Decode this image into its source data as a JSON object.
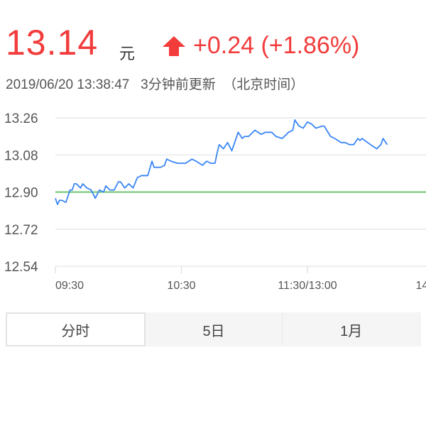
{
  "quote": {
    "price": "13.14",
    "unit": "元",
    "change": "+0.24 (+1.86%)",
    "direction_icon": "arrow-up-icon",
    "updated": "2019/06/20 13:38:47   3分钟前更新  （北京时间）",
    "up_color": "#f23b3b"
  },
  "tabs": [
    {
      "label": "分时",
      "active": true
    },
    {
      "label": "5日",
      "active": false
    },
    {
      "label": "1月",
      "active": false
    }
  ],
  "chart_data": {
    "type": "line",
    "title": "",
    "xlabel": "",
    "ylabel": "",
    "ylim": [
      12.54,
      13.26
    ],
    "y_ticks": [
      "13.26",
      "13.08",
      "12.90",
      "12.72",
      "12.54"
    ],
    "x_ticks": [
      "09:30",
      "10:30",
      "11:30/13:00",
      "14"
    ],
    "grid": true,
    "reference_line": {
      "value": 12.9,
      "color": "#6cc36c"
    },
    "series": [
      {
        "color": "#3a86f5",
        "points": [
          [
            "09:30",
            12.87
          ],
          [
            "09:31",
            12.84
          ],
          [
            "09:32",
            12.86
          ],
          [
            "09:33",
            12.86
          ],
          [
            "09:35",
            12.85
          ],
          [
            "09:37",
            12.91
          ],
          [
            "09:38",
            12.91
          ],
          [
            "09:39",
            12.94
          ],
          [
            "09:40",
            12.94
          ],
          [
            "09:42",
            12.92
          ],
          [
            "09:43",
            12.94
          ],
          [
            "09:45",
            12.92
          ],
          [
            "09:47",
            12.91
          ],
          [
            "09:49",
            12.87
          ],
          [
            "09:51",
            12.91
          ],
          [
            "09:53",
            12.9
          ],
          [
            "09:54",
            12.93
          ],
          [
            "09:56",
            12.91
          ],
          [
            "09:58",
            12.91
          ],
          [
            "10:00",
            12.95
          ],
          [
            "10:01",
            12.95
          ],
          [
            "10:03",
            12.92
          ],
          [
            "10:05",
            12.94
          ],
          [
            "10:07",
            12.92
          ],
          [
            "10:09",
            12.97
          ],
          [
            "10:11",
            12.98
          ],
          [
            "10:14",
            12.98
          ],
          [
            "10:16",
            13.05
          ],
          [
            "10:17",
            13.02
          ],
          [
            "10:20",
            13.02
          ],
          [
            "10:22",
            13.03
          ],
          [
            "10:23",
            13.06
          ],
          [
            "10:25",
            13.05
          ],
          [
            "10:28",
            13.04
          ],
          [
            "10:32",
            13.04
          ],
          [
            "10:35",
            13.06
          ],
          [
            "10:37",
            13.05
          ],
          [
            "10:40",
            13.03
          ],
          [
            "10:42",
            13.05
          ],
          [
            "10:44",
            13.04
          ],
          [
            "10:46",
            13.04
          ],
          [
            "10:47",
            13.09
          ],
          [
            "10:48",
            13.13
          ],
          [
            "10:50",
            13.11
          ],
          [
            "10:52",
            13.14
          ],
          [
            "10:54",
            13.1
          ],
          [
            "10:55",
            13.13
          ],
          [
            "10:57",
            13.19
          ],
          [
            "10:59",
            13.16
          ],
          [
            "11:00",
            13.17
          ],
          [
            "11:02",
            13.17
          ],
          [
            "11:05",
            13.2
          ],
          [
            "11:08",
            13.18
          ],
          [
            "11:10",
            13.19
          ],
          [
            "11:13",
            13.19
          ],
          [
            "11:15",
            13.17
          ],
          [
            "11:18",
            13.16
          ],
          [
            "11:21",
            13.19
          ],
          [
            "11:23",
            13.2
          ],
          [
            "11:24",
            13.25
          ],
          [
            "11:26",
            13.22
          ],
          [
            "11:28",
            13.21
          ],
          [
            "13:00",
            13.24
          ],
          [
            "13:02",
            13.23
          ],
          [
            "13:04",
            13.21
          ],
          [
            "13:07",
            13.22
          ],
          [
            "13:08",
            13.22
          ],
          [
            "13:11",
            13.17
          ],
          [
            "13:13",
            13.16
          ],
          [
            "13:16",
            13.14
          ],
          [
            "13:18",
            13.14
          ],
          [
            "13:20",
            13.13
          ],
          [
            "13:22",
            13.13
          ],
          [
            "13:24",
            13.16
          ],
          [
            "13:25",
            13.15
          ],
          [
            "13:26",
            13.16
          ],
          [
            "13:30",
            13.13
          ],
          [
            "13:33",
            13.11
          ],
          [
            "13:35",
            13.13
          ],
          [
            "13:36",
            13.16
          ],
          [
            "13:38",
            13.13
          ]
        ]
      }
    ]
  }
}
